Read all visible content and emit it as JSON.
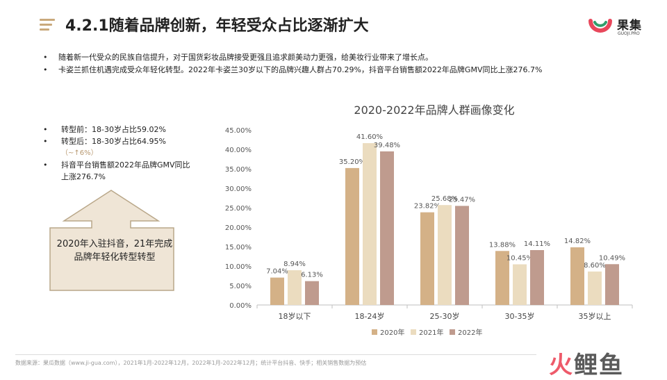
{
  "header": {
    "title": "4.2.1随着品牌创新，年轻受众占比逐渐扩大",
    "brand_name": "果集",
    "brand_sub": "GUOJI.PRO"
  },
  "intro_bullets": [
    "随着新一代受众的民族自信提升，对于国货彩妆品牌接受更强且追求颜美动力更强，给美妆行业带来了增长点。",
    "卡姿兰抓住机遇完成受众年轻化转型。2022年卡姿兰30岁以下的品牌兴趣人群占70.29%，抖音平台销售额2022年品牌GMV同比上涨276.7%"
  ],
  "side": {
    "items": [
      "转型前：18-30岁占比59.02%",
      "转型后：18-30岁占比64.95%",
      "抖音平台销售额2022年品牌GMV同比上涨276.7%"
    ],
    "note": "（~↑6%）",
    "callout": "2020年入驻抖音，21年完成品牌年轻化转型转型"
  },
  "colors": {
    "accent": "#c9a97c",
    "s2020": "#d4b187",
    "s2021": "#ebdcbf",
    "s2022": "#bf9b8e",
    "callout_fill": "#efe5d6",
    "callout_stroke": "#b9a789"
  },
  "chart_data": {
    "type": "bar",
    "title": "2020-2022年品牌人群画像变化",
    "categories": [
      "18岁以下",
      "18-24岁",
      "25-30岁",
      "30-35岁",
      "35岁以上"
    ],
    "series": [
      {
        "name": "2020年",
        "values": [
          7.04,
          35.2,
          23.82,
          13.88,
          14.82
        ]
      },
      {
        "name": "2021年",
        "values": [
          8.94,
          41.6,
          25.68,
          10.45,
          8.6
        ]
      },
      {
        "name": "2022年",
        "values": [
          6.13,
          39.48,
          25.47,
          14.11,
          10.49
        ]
      }
    ],
    "data_labels": [
      [
        "7.04%",
        "35.20%",
        "23.82%",
        "13.88%",
        "14.82%"
      ],
      [
        "8.94%",
        "41.60%",
        "25.68%",
        "10.45%",
        "8.60%"
      ],
      [
        "6.13%",
        "39.48%",
        "25.47%",
        "14.11%",
        "10.49%"
      ]
    ],
    "yticks": [
      "0.00%",
      "5.00%",
      "10.00%",
      "15.00%",
      "20.00%",
      "25.00%",
      "30.00%",
      "35.00%",
      "40.00%",
      "45.00%"
    ],
    "ylim": [
      0,
      45
    ],
    "grid": false,
    "legend": "bottom"
  },
  "footer": {
    "source": "数据来源：果瓜数据（www.ji-gua.com），2021年1月-2022年12月，2022年1月-2022年12月；统计平台抖音、快手；相关销售数据为预估",
    "watermark_a": "火",
    "watermark_b": "鲤鱼"
  }
}
